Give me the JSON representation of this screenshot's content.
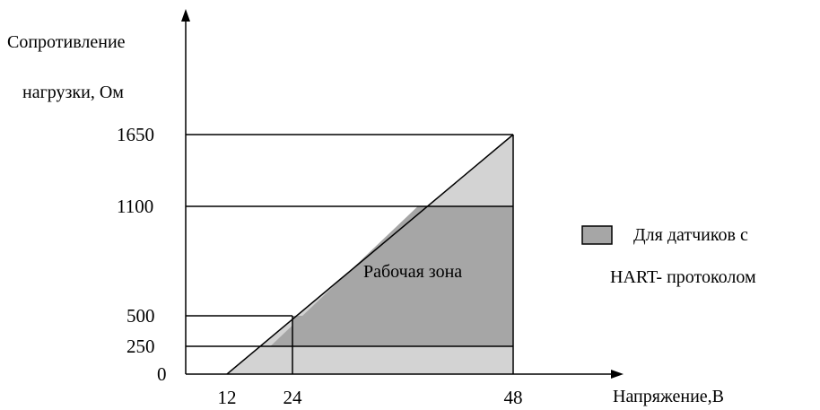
{
  "chart_data": {
    "type": "area",
    "ylabel_line1": "Сопротивление",
    "ylabel_line2": "нагрузки, Ом",
    "xlabel": "Напряжение,В",
    "x_ticks": [
      12,
      24,
      48
    ],
    "y_ticks": [
      0,
      250,
      500,
      1100,
      1650
    ],
    "x_tick_labels": [
      "12",
      "24",
      "48"
    ],
    "y_tick_labels": [
      "0",
      "250",
      "500",
      "1100",
      "1650"
    ],
    "load_line": [
      {
        "x": 12,
        "y": 0
      },
      {
        "x": 48,
        "y": 1650
      }
    ],
    "zone_label": "Рабочая зона",
    "regions": [
      {
        "name": "operating-zone-light",
        "color": "#d3d3d3",
        "y_max": 1650,
        "x_max": 48
      },
      {
        "name": "hart-zone",
        "color": "#a6a6a6",
        "y_min": 250,
        "y_max": 1100,
        "x_max": 48
      }
    ],
    "legend": {
      "placement": "right",
      "swatch_color": "#a6a6a6",
      "text_line1": "Для датчиков с",
      "text_line2": "HART- протоколом"
    }
  }
}
